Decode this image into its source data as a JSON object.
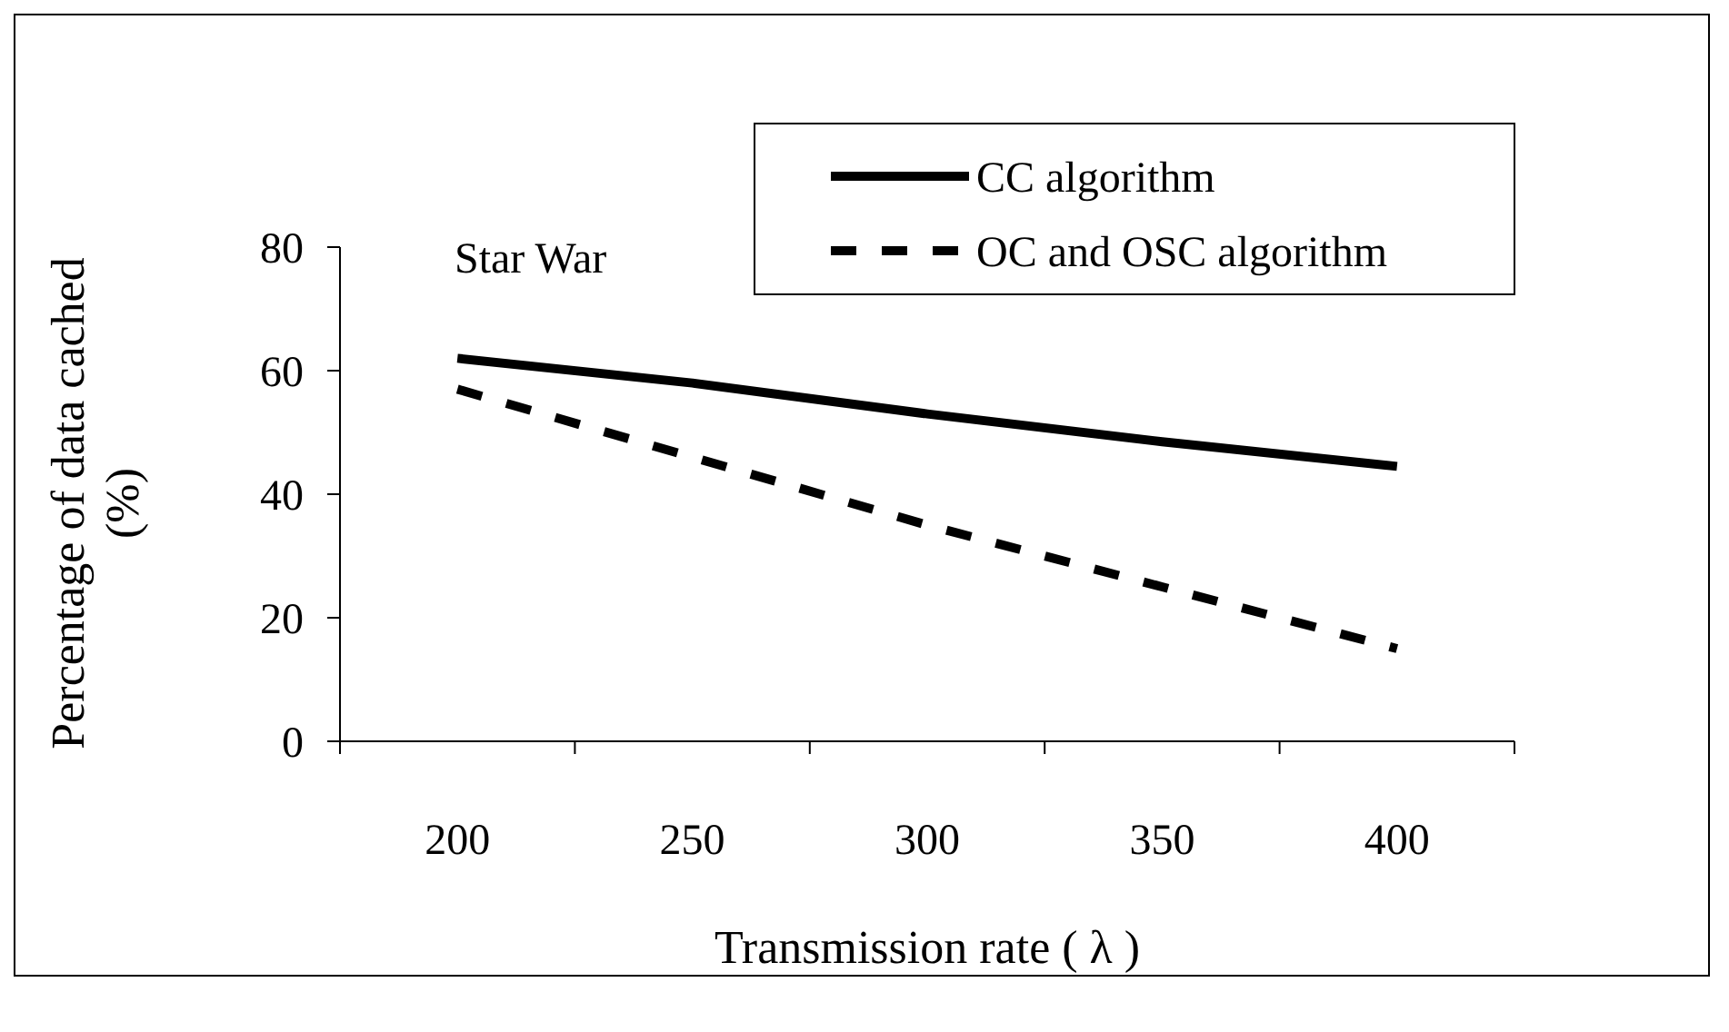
{
  "chart_data": {
    "type": "line",
    "xlabel": "Transmission rate ( λ )",
    "ylabel": "Percentage of data cached (%)",
    "annotations": [
      "Star War"
    ],
    "categories": [
      "200",
      "250",
      "300",
      "350",
      "400"
    ],
    "series": [
      {
        "name": "CC algorithm",
        "color": "#000000",
        "values": [
          62,
          58,
          53,
          48.5,
          44.5
        ],
        "line_style": "solid"
      },
      {
        "name": "OC and OSC algorithm",
        "color": "#000000",
        "values": [
          57,
          46,
          35,
          25,
          15
        ],
        "line_style": "dashed"
      }
    ],
    "ylim": [
      0,
      80
    ],
    "yticks": [
      0,
      20,
      40,
      60,
      80
    ],
    "grid": false,
    "legend": "top right",
    "marker": "none"
  }
}
